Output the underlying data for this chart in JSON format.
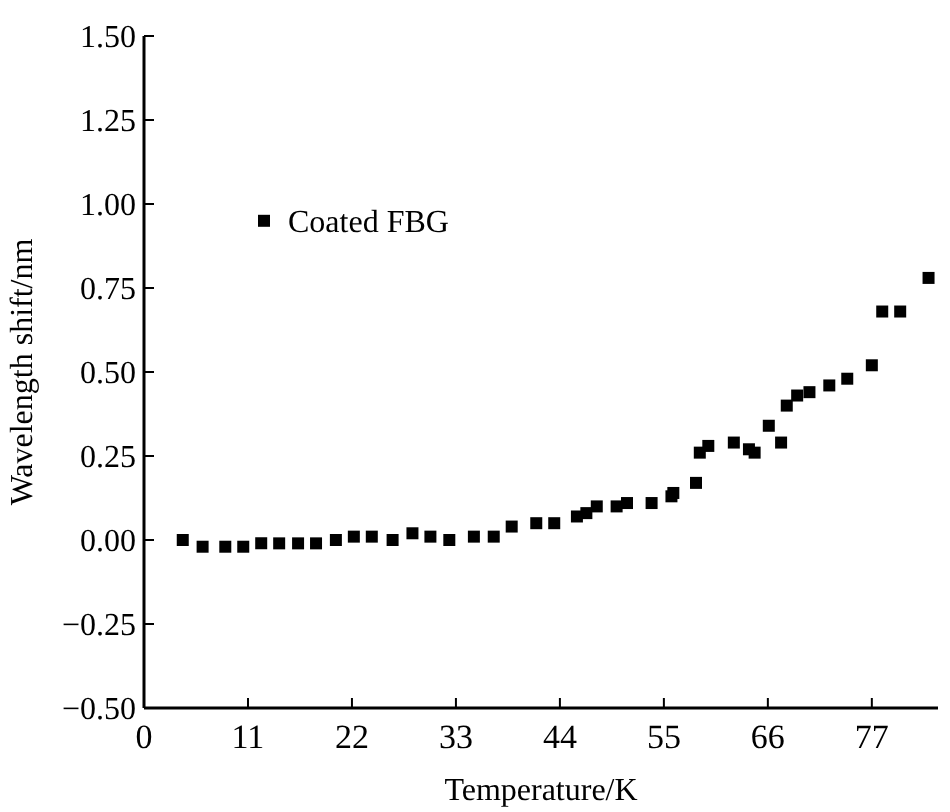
{
  "chart_data": {
    "type": "scatter",
    "xlabel": "Temperature/K",
    "ylabel": "Wavelength shift/nm",
    "xlim": [
      0,
      84
    ],
    "xticks": [
      0,
      11,
      22,
      33,
      44,
      55,
      66,
      77
    ],
    "ylim": [
      -0.5,
      1.5
    ],
    "yticks": [
      {
        "value": -0.5,
        "label": "−0.50"
      },
      {
        "value": -0.25,
        "label": "−0.25"
      },
      {
        "value": 0,
        "label": "0.00"
      },
      {
        "value": 0.25,
        "label": "0.25"
      },
      {
        "value": 0.5,
        "label": "0.50"
      },
      {
        "value": 0.75,
        "label": "0.75"
      },
      {
        "value": 1,
        "label": "1.00"
      },
      {
        "value": 1.25,
        "label": "1.25"
      },
      {
        "value": 1.5,
        "label": "1.50"
      }
    ],
    "marker": "square",
    "legend": "top left",
    "grid": false,
    "series": [
      {
        "name": "Coated FBG",
        "color": "#000000",
        "x": [
          4.1,
          6.2,
          8.6,
          10.5,
          12.4,
          14.3,
          16.3,
          18.2,
          20.3,
          22.2,
          24.1,
          26.3,
          28.4,
          30.3,
          32.3,
          34.9,
          37.0,
          38.9,
          41.5,
          43.4,
          45.8,
          46.8,
          47.9,
          50.0,
          51.1,
          53.7,
          55.8,
          56.0,
          58.4,
          58.8,
          59.7,
          62.4,
          64.0,
          64.6,
          66.1,
          67.4,
          68.0,
          69.1,
          70.4,
          72.5,
          74.4,
          77.0,
          78.1,
          80.0,
          83.0
        ],
        "values": [
          0.0,
          -0.02,
          -0.02,
          -0.02,
          -0.01,
          -0.01,
          -0.01,
          -0.01,
          0.0,
          0.01,
          0.01,
          0.0,
          0.02,
          0.01,
          0.0,
          0.01,
          0.01,
          0.04,
          0.05,
          0.05,
          0.07,
          0.08,
          0.1,
          0.1,
          0.11,
          0.11,
          0.13,
          0.14,
          0.17,
          0.26,
          0.28,
          0.29,
          0.27,
          0.26,
          0.34,
          0.29,
          0.4,
          0.43,
          0.44,
          0.46,
          0.48,
          0.52,
          0.68,
          0.68,
          0.78
        ]
      }
    ]
  }
}
